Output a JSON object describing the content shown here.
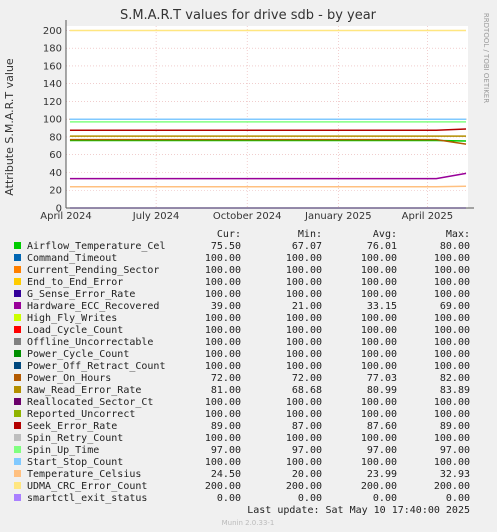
{
  "chart_data": {
    "type": "line",
    "title": "S.M.A.R.T values for drive sdb - by year",
    "ylabel": "Attribute S.M.A.R.T value",
    "side_label": "RRDTOOL / TOBI OETIKER",
    "ylim": [
      0,
      205
    ],
    "yticks": [
      0,
      20,
      40,
      60,
      80,
      100,
      120,
      140,
      160,
      180,
      200
    ],
    "xlim": [
      "2024-04-01",
      "2025-05-12"
    ],
    "xticks": [
      {
        "date": "2024-04-01",
        "label": "April 2024"
      },
      {
        "date": "2024-07-01",
        "label": "July 2024"
      },
      {
        "date": "2024-10-01",
        "label": "October 2024"
      },
      {
        "date": "2025-01-01",
        "label": "January 2025"
      },
      {
        "date": "2025-04-01",
        "label": "April 2025"
      }
    ],
    "grid": true,
    "columns": [
      "Cur:",
      "Min:",
      "Avg:",
      "Max:"
    ],
    "series": [
      {
        "name": "Airflow_Temperature_Cel",
        "color": "#00cc00",
        "values": [
          "75.50",
          "67.07",
          "76.01",
          "80.00"
        ]
      },
      {
        "name": "Command_Timeout",
        "color": "#0066b3",
        "values": [
          "100.00",
          "100.00",
          "100.00",
          "100.00"
        ]
      },
      {
        "name": "Current_Pending_Sector",
        "color": "#ff8000",
        "values": [
          "100.00",
          "100.00",
          "100.00",
          "100.00"
        ]
      },
      {
        "name": "End_to_End_Error",
        "color": "#ffcc00",
        "values": [
          "100.00",
          "100.00",
          "100.00",
          "100.00"
        ]
      },
      {
        "name": "G_Sense_Error_Rate",
        "color": "#330099",
        "values": [
          "100.00",
          "100.00",
          "100.00",
          "100.00"
        ]
      },
      {
        "name": "Hardware_ECC_Recovered",
        "color": "#990099",
        "values": [
          "39.00",
          "21.00",
          "33.15",
          "69.00"
        ]
      },
      {
        "name": "High_Fly_Writes",
        "color": "#ccff00",
        "values": [
          "100.00",
          "100.00",
          "100.00",
          "100.00"
        ]
      },
      {
        "name": "Load_Cycle_Count",
        "color": "#ff0000",
        "values": [
          "100.00",
          "100.00",
          "100.00",
          "100.00"
        ]
      },
      {
        "name": "Offline_Uncorrectable",
        "color": "#808080",
        "values": [
          "100.00",
          "100.00",
          "100.00",
          "100.00"
        ]
      },
      {
        "name": "Power_Cycle_Count",
        "color": "#008f00",
        "values": [
          "100.00",
          "100.00",
          "100.00",
          "100.00"
        ]
      },
      {
        "name": "Power_Off_Retract_Count",
        "color": "#00487d",
        "values": [
          "100.00",
          "100.00",
          "100.00",
          "100.00"
        ]
      },
      {
        "name": "Power_On_Hours",
        "color": "#b35a00",
        "values": [
          "72.00",
          "72.00",
          "77.03",
          "82.00"
        ]
      },
      {
        "name": "Raw_Read_Error_Rate",
        "color": "#b38f00",
        "values": [
          "81.00",
          "68.68",
          "80.99",
          "83.89"
        ]
      },
      {
        "name": "Reallocated_Sector_Ct",
        "color": "#6b006b",
        "values": [
          "100.00",
          "100.00",
          "100.00",
          "100.00"
        ]
      },
      {
        "name": "Reported_Uncorrect",
        "color": "#8fb300",
        "values": [
          "100.00",
          "100.00",
          "100.00",
          "100.00"
        ]
      },
      {
        "name": "Seek_Error_Rate",
        "color": "#b30000",
        "values": [
          "89.00",
          "87.00",
          "87.60",
          "89.00"
        ]
      },
      {
        "name": "Spin_Retry_Count",
        "color": "#bebebe",
        "values": [
          "100.00",
          "100.00",
          "100.00",
          "100.00"
        ]
      },
      {
        "name": "Spin_Up_Time",
        "color": "#80ff80",
        "values": [
          "97.00",
          "97.00",
          "97.00",
          "97.00"
        ]
      },
      {
        "name": "Start_Stop_Count",
        "color": "#80c9ff",
        "values": [
          "100.00",
          "100.00",
          "100.00",
          "100.00"
        ]
      },
      {
        "name": "Temperature_Celsius",
        "color": "#ffc080",
        "values": [
          "24.50",
          "20.00",
          "23.99",
          "32.93"
        ]
      },
      {
        "name": "UDMA_CRC_Error_Count",
        "color": "#ffe680",
        "values": [
          "200.00",
          "200.00",
          "200.00",
          "200.00"
        ]
      },
      {
        "name": "smartctl_exit_status",
        "color": "#aa80ff",
        "values": [
          "0.00",
          "0.00",
          "0.00",
          "0.00"
        ]
      }
    ],
    "footer": {
      "last_update": "Last update:  Sat May 10 17:40:00 2025",
      "version": "Munin 2.0.33-1"
    }
  }
}
